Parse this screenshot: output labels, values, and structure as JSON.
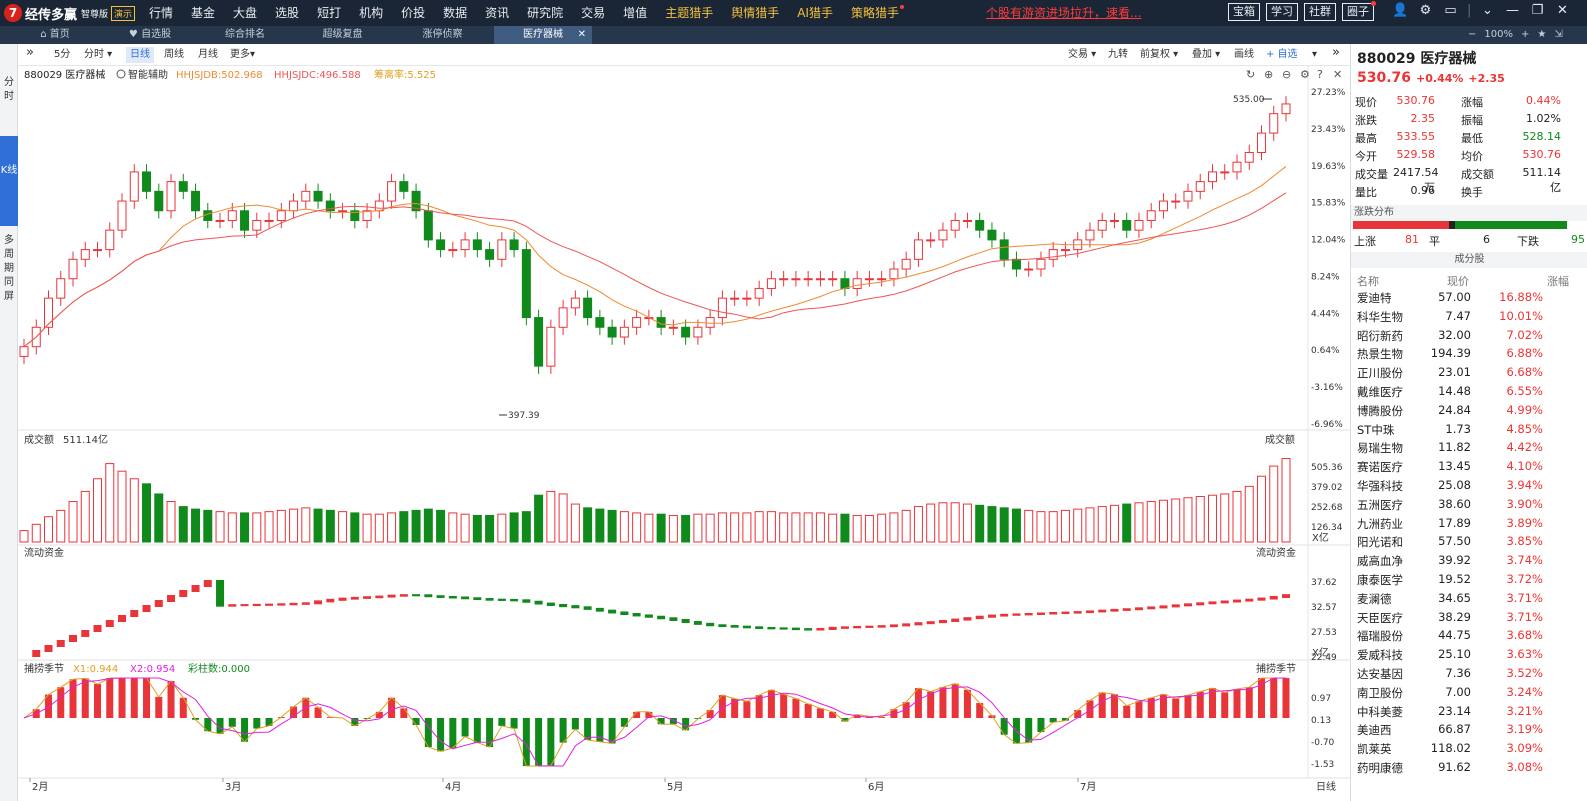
{
  "app": {
    "logo_mark": "7",
    "name": "经传多赢",
    "edition": "智尊版",
    "demo_badge": "演示"
  },
  "menu": [
    "行情",
    "基金",
    "大盘",
    "选股",
    "短打",
    "机构",
    "价投",
    "数据",
    "资讯",
    "研究院",
    "交易",
    "增值",
    "主题猎手",
    "舆情猎手",
    "AI猎手",
    "策略猎手"
  ],
  "promo": "个股有游资进场拉升，速看...",
  "right_tools": [
    "宝箱",
    "学习",
    "社群",
    "圈子"
  ],
  "window_icons": [
    "user-icon",
    "gear-icon",
    "window-icon",
    "chevron-down-icon",
    "minimize-icon",
    "restore-icon",
    "close-icon"
  ],
  "tabs": [
    {
      "label": "首页",
      "icon": "home-icon"
    },
    {
      "label": "自选股",
      "icon": "heart-icon"
    },
    {
      "label": "综合排名"
    },
    {
      "label": "超级复盘"
    },
    {
      "label": "涨停侦察"
    },
    {
      "label": "医疗器械",
      "active": true
    }
  ],
  "tab_controls": {
    "zoom_out": "−",
    "zoom": "100%",
    "zoom_in": "+",
    "star": "★",
    "pin": "⇲"
  },
  "left_side": [
    "分时",
    "K线",
    "多周期同屏"
  ],
  "toolbar": {
    "periods": [
      "5分",
      "分时 ▾",
      "日线",
      "周线",
      "月线",
      "更多▾"
    ],
    "right": [
      "交易 ▾",
      "九转",
      "前复权 ▾",
      "叠加 ▾",
      "画线",
      "+ 自选",
      "▾"
    ]
  },
  "main_chart": {
    "code_name": "880029 医疗器械",
    "assist": "智能辅助",
    "ma1": "HHJSJDB:502.968",
    "ma2": "HHJSJDC:496.588",
    "ma3": "筹离率:5.525",
    "y_labels": [
      "27.23%",
      "23.43%",
      "19.63%",
      "15.83%",
      "12.04%",
      "8.24%",
      "4.44%",
      "0.64%",
      "-3.16%",
      "-6.96%"
    ],
    "high_label": "535.00",
    "low_label": "397.39",
    "x_labels": [
      "2月",
      "3月",
      "4月",
      "5月",
      "6月",
      "7月"
    ],
    "x_end": "日线",
    "colors": {
      "up": "#e8353a",
      "down": "#118a1c",
      "ma1": "#f08a30",
      "ma2": "#ee5555"
    }
  },
  "volume_panel": {
    "title": "成交额",
    "value": "511.14亿",
    "right_title": "成交额",
    "y_labels": [
      "505.36",
      "379.02",
      "252.68",
      "126.34"
    ],
    "unit": "X亿"
  },
  "flow_panel": {
    "title": "流动资金",
    "right_title": "流动资金",
    "y_labels": [
      "37.62",
      "32.57",
      "27.53",
      "22.49"
    ],
    "unit": "X亿"
  },
  "season_panel": {
    "title": "捕捞季节",
    "x1": "X1:0.944",
    "x2": "X2:0.954",
    "bars": "彩柱数:0.000",
    "right_title": "捕捞季节",
    "y_labels": [
      "0.97",
      "0.13",
      "-0.70",
      "-1.53"
    ]
  },
  "chart_data": {
    "type": "candlestick",
    "title": "880029 医疗器械",
    "x_months": [
      "2月",
      "3月",
      "4月",
      "5月",
      "6月",
      "7月"
    ],
    "y_axis_pct": [
      27.23,
      23.43,
      19.63,
      15.83,
      12.04,
      8.24,
      4.44,
      0.64,
      -3.16,
      -6.96
    ],
    "high": 535.0,
    "low": 397.39,
    "closes_pct_approx": [
      1,
      3,
      6,
      8,
      10,
      11,
      11,
      13,
      16,
      19,
      17,
      15,
      18,
      17,
      15,
      14,
      14,
      15,
      13,
      14,
      14,
      15,
      16,
      17,
      16,
      15,
      15,
      14,
      15,
      16,
      18,
      17,
      15,
      12,
      11,
      11,
      12,
      11,
      10,
      12,
      11,
      4,
      -1,
      3,
      5,
      6,
      4,
      3,
      2,
      3,
      4,
      4,
      3,
      3,
      2,
      3,
      4,
      6,
      6,
      6,
      7,
      8,
      8,
      8,
      8,
      8,
      8,
      7,
      8,
      8,
      8,
      9,
      10,
      12,
      12,
      13,
      14,
      14,
      13,
      12,
      10,
      9,
      9,
      10,
      11,
      11,
      12,
      13,
      14,
      14,
      13,
      14,
      15,
      16,
      16,
      17,
      18,
      19,
      19,
      20,
      21,
      23,
      25,
      26
    ],
    "volume_approx_yi": [
      90,
      140,
      200,
      250,
      320,
      400,
      500,
      620,
      560,
      500,
      460,
      380,
      320,
      280,
      260,
      250,
      240,
      230,
      230,
      230,
      240,
      250,
      260,
      270,
      260,
      250,
      240,
      230,
      220,
      220,
      230,
      240,
      250,
      260,
      250,
      230,
      220,
      210,
      210,
      220,
      230,
      240,
      370,
      400,
      380,
      300,
      270,
      260,
      250,
      240,
      230,
      220,
      220,
      210,
      210,
      220,
      220,
      230,
      230,
      230,
      240,
      240,
      230,
      230,
      230,
      230,
      220,
      220,
      210,
      210,
      220,
      230,
      250,
      280,
      300,
      310,
      310,
      300,
      290,
      280,
      270,
      260,
      250,
      240,
      240,
      250,
      260,
      270,
      280,
      290,
      300,
      310,
      320,
      330,
      340,
      350,
      360,
      370,
      380,
      400,
      440,
      520,
      600,
      660,
      580,
      460
    ],
    "season_colored_bars": "color"
  },
  "right_panel": {
    "code": "880029",
    "name": "医疗器械",
    "price": "530.76",
    "change_pct": "+0.44%",
    "change": "+2.35",
    "quote": [
      [
        "现价",
        "530.76",
        "red",
        "涨幅",
        "0.44%",
        "red"
      ],
      [
        "涨跌",
        "2.35",
        "red",
        "振幅",
        "1.02%",
        ""
      ],
      [
        "最高",
        "533.55",
        "red",
        "最低",
        "528.14",
        "grn"
      ],
      [
        "今开",
        "529.58",
        "red",
        "均价",
        "530.76",
        "red"
      ],
      [
        "成交量",
        "2417.54万",
        "",
        "成交额",
        "511.14亿",
        ""
      ],
      [
        "量比",
        "0.96",
        "",
        "换手",
        "-",
        ""
      ]
    ],
    "dist_title": "涨跌分布",
    "dist": {
      "up_label": "上涨",
      "up": "81",
      "flat_label": "平",
      "flat": "6",
      "down_label": "下跌",
      "down": "95"
    },
    "components_title": "成分股",
    "comp_head": [
      "名称",
      "现价",
      "涨幅"
    ],
    "components": [
      [
        "爱迪特",
        "57.00",
        "16.88%"
      ],
      [
        "科华生物",
        "7.47",
        "10.01%"
      ],
      [
        "昭衍新药",
        "32.00",
        "7.02%"
      ],
      [
        "热景生物",
        "194.39",
        "6.88%"
      ],
      [
        "正川股份",
        "23.01",
        "6.68%"
      ],
      [
        "戴维医疗",
        "14.48",
        "6.55%"
      ],
      [
        "博腾股份",
        "24.84",
        "4.99%"
      ],
      [
        "ST中珠",
        "1.73",
        "4.85%"
      ],
      [
        "易瑞生物",
        "11.82",
        "4.42%"
      ],
      [
        "赛诺医疗",
        "13.45",
        "4.10%"
      ],
      [
        "华强科技",
        "25.08",
        "3.94%"
      ],
      [
        "五洲医疗",
        "38.60",
        "3.90%"
      ],
      [
        "九洲药业",
        "17.89",
        "3.89%"
      ],
      [
        "阳光诺和",
        "57.50",
        "3.85%"
      ],
      [
        "威高血净",
        "39.92",
        "3.74%"
      ],
      [
        "康泰医学",
        "19.52",
        "3.72%"
      ],
      [
        "麦澜德",
        "34.65",
        "3.71%"
      ],
      [
        "天臣医疗",
        "38.29",
        "3.71%"
      ],
      [
        "福瑞股份",
        "44.75",
        "3.68%"
      ],
      [
        "爱威科技",
        "25.10",
        "3.63%"
      ],
      [
        "达安基因",
        "7.36",
        "3.52%"
      ],
      [
        "南卫股份",
        "7.00",
        "3.24%"
      ],
      [
        "中科美菱",
        "23.14",
        "3.21%"
      ],
      [
        "美迪西",
        "66.87",
        "3.19%"
      ],
      [
        "凯莱英",
        "118.02",
        "3.09%"
      ],
      [
        "药明康德",
        "91.62",
        "3.08%"
      ]
    ]
  }
}
